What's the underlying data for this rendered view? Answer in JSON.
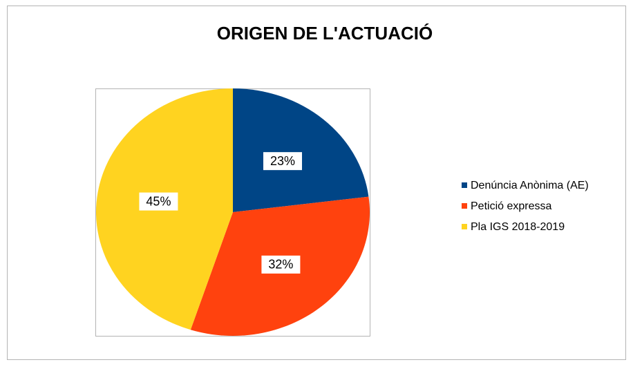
{
  "chart_data": {
    "type": "pie",
    "title": "ORIGEN DE L'ACTUACIÓ",
    "categories": [
      "Denúncia Anònima (AE)",
      "Petició expressa",
      "Pla IGS 2018-2019"
    ],
    "values": [
      23,
      32,
      45
    ],
    "value_labels": [
      "23%",
      "32%",
      "45%"
    ],
    "colors": [
      "#004586",
      "#ff420e",
      "#ffd320"
    ],
    "legend": "right"
  }
}
